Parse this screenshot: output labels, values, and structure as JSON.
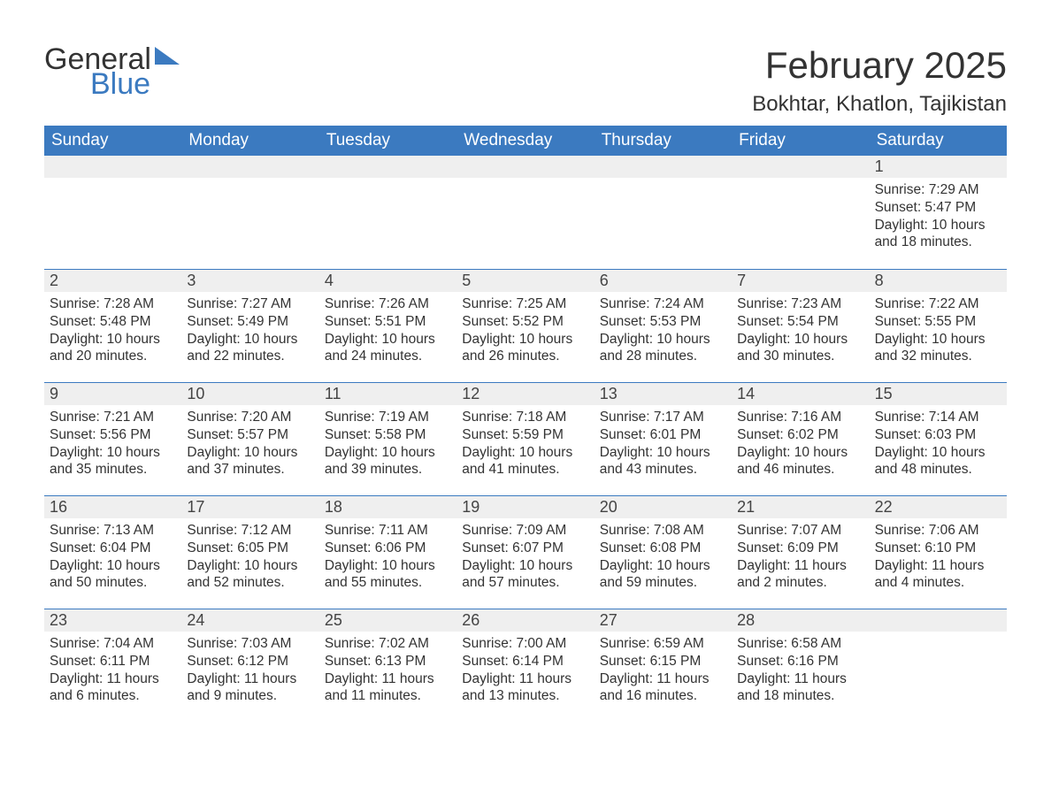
{
  "brand": {
    "name_general": "General",
    "name_blue": "Blue",
    "text_color": "#333333",
    "accent_color": "#3b7ac0"
  },
  "header": {
    "month_title": "February 2025",
    "location": "Bokhtar, Khatlon, Tajikistan"
  },
  "colors": {
    "header_bg": "#3b7ac0",
    "header_text": "#ffffff",
    "daynum_bg": "#efefef",
    "week_divider": "#3b7ac0",
    "body_text": "#333333",
    "page_bg": "#ffffff"
  },
  "day_names": [
    "Sunday",
    "Monday",
    "Tuesday",
    "Wednesday",
    "Thursday",
    "Friday",
    "Saturday"
  ],
  "weeks": [
    [
      {
        "blank": true
      },
      {
        "blank": true
      },
      {
        "blank": true
      },
      {
        "blank": true
      },
      {
        "blank": true
      },
      {
        "blank": true
      },
      {
        "n": "1",
        "sunrise": "7:29 AM",
        "sunset": "5:47 PM",
        "daylight": "10 hours and 18 minutes."
      }
    ],
    [
      {
        "n": "2",
        "sunrise": "7:28 AM",
        "sunset": "5:48 PM",
        "daylight": "10 hours and 20 minutes."
      },
      {
        "n": "3",
        "sunrise": "7:27 AM",
        "sunset": "5:49 PM",
        "daylight": "10 hours and 22 minutes."
      },
      {
        "n": "4",
        "sunrise": "7:26 AM",
        "sunset": "5:51 PM",
        "daylight": "10 hours and 24 minutes."
      },
      {
        "n": "5",
        "sunrise": "7:25 AM",
        "sunset": "5:52 PM",
        "daylight": "10 hours and 26 minutes."
      },
      {
        "n": "6",
        "sunrise": "7:24 AM",
        "sunset": "5:53 PM",
        "daylight": "10 hours and 28 minutes."
      },
      {
        "n": "7",
        "sunrise": "7:23 AM",
        "sunset": "5:54 PM",
        "daylight": "10 hours and 30 minutes."
      },
      {
        "n": "8",
        "sunrise": "7:22 AM",
        "sunset": "5:55 PM",
        "daylight": "10 hours and 32 minutes."
      }
    ],
    [
      {
        "n": "9",
        "sunrise": "7:21 AM",
        "sunset": "5:56 PM",
        "daylight": "10 hours and 35 minutes."
      },
      {
        "n": "10",
        "sunrise": "7:20 AM",
        "sunset": "5:57 PM",
        "daylight": "10 hours and 37 minutes."
      },
      {
        "n": "11",
        "sunrise": "7:19 AM",
        "sunset": "5:58 PM",
        "daylight": "10 hours and 39 minutes."
      },
      {
        "n": "12",
        "sunrise": "7:18 AM",
        "sunset": "5:59 PM",
        "daylight": "10 hours and 41 minutes."
      },
      {
        "n": "13",
        "sunrise": "7:17 AM",
        "sunset": "6:01 PM",
        "daylight": "10 hours and 43 minutes."
      },
      {
        "n": "14",
        "sunrise": "7:16 AM",
        "sunset": "6:02 PM",
        "daylight": "10 hours and 46 minutes."
      },
      {
        "n": "15",
        "sunrise": "7:14 AM",
        "sunset": "6:03 PM",
        "daylight": "10 hours and 48 minutes."
      }
    ],
    [
      {
        "n": "16",
        "sunrise": "7:13 AM",
        "sunset": "6:04 PM",
        "daylight": "10 hours and 50 minutes."
      },
      {
        "n": "17",
        "sunrise": "7:12 AM",
        "sunset": "6:05 PM",
        "daylight": "10 hours and 52 minutes."
      },
      {
        "n": "18",
        "sunrise": "7:11 AM",
        "sunset": "6:06 PM",
        "daylight": "10 hours and 55 minutes."
      },
      {
        "n": "19",
        "sunrise": "7:09 AM",
        "sunset": "6:07 PM",
        "daylight": "10 hours and 57 minutes."
      },
      {
        "n": "20",
        "sunrise": "7:08 AM",
        "sunset": "6:08 PM",
        "daylight": "10 hours and 59 minutes."
      },
      {
        "n": "21",
        "sunrise": "7:07 AM",
        "sunset": "6:09 PM",
        "daylight": "11 hours and 2 minutes."
      },
      {
        "n": "22",
        "sunrise": "7:06 AM",
        "sunset": "6:10 PM",
        "daylight": "11 hours and 4 minutes."
      }
    ],
    [
      {
        "n": "23",
        "sunrise": "7:04 AM",
        "sunset": "6:11 PM",
        "daylight": "11 hours and 6 minutes."
      },
      {
        "n": "24",
        "sunrise": "7:03 AM",
        "sunset": "6:12 PM",
        "daylight": "11 hours and 9 minutes."
      },
      {
        "n": "25",
        "sunrise": "7:02 AM",
        "sunset": "6:13 PM",
        "daylight": "11 hours and 11 minutes."
      },
      {
        "n": "26",
        "sunrise": "7:00 AM",
        "sunset": "6:14 PM",
        "daylight": "11 hours and 13 minutes."
      },
      {
        "n": "27",
        "sunrise": "6:59 AM",
        "sunset": "6:15 PM",
        "daylight": "11 hours and 16 minutes."
      },
      {
        "n": "28",
        "sunrise": "6:58 AM",
        "sunset": "6:16 PM",
        "daylight": "11 hours and 18 minutes."
      },
      {
        "blank": true
      }
    ]
  ],
  "labels": {
    "sunrise_prefix": "Sunrise: ",
    "sunset_prefix": "Sunset: ",
    "daylight_prefix": "Daylight: "
  }
}
